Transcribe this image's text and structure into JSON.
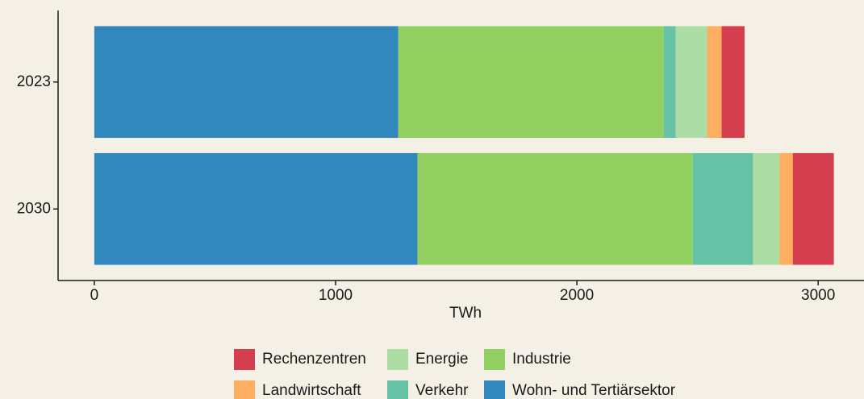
{
  "chart_data": {
    "type": "stacked_barh",
    "categories": [
      "2023",
      "2030"
    ],
    "series": [
      {
        "name": "Wohn- und Tertiärsektor",
        "color": "#3288bd",
        "values": [
          1260,
          1340
        ]
      },
      {
        "name": "Industrie",
        "color": "#92d062",
        "values": [
          1100,
          1140
        ]
      },
      {
        "name": "Verkehr",
        "color": "#66c2a5",
        "values": [
          50,
          250
        ]
      },
      {
        "name": "Energie",
        "color": "#abdda4",
        "values": [
          130,
          110
        ]
      },
      {
        "name": "Landwirtschaft",
        "color": "#fdae61",
        "values": [
          60,
          55
        ]
      },
      {
        "name": "Rechenzentren",
        "color": "#d53e4f",
        "values": [
          95,
          170
        ]
      }
    ],
    "x_label": "TWh",
    "xlim": [
      -150,
      3190
    ],
    "xticks": [
      0,
      1000,
      2000,
      3000
    ],
    "legend": "bottom"
  }
}
